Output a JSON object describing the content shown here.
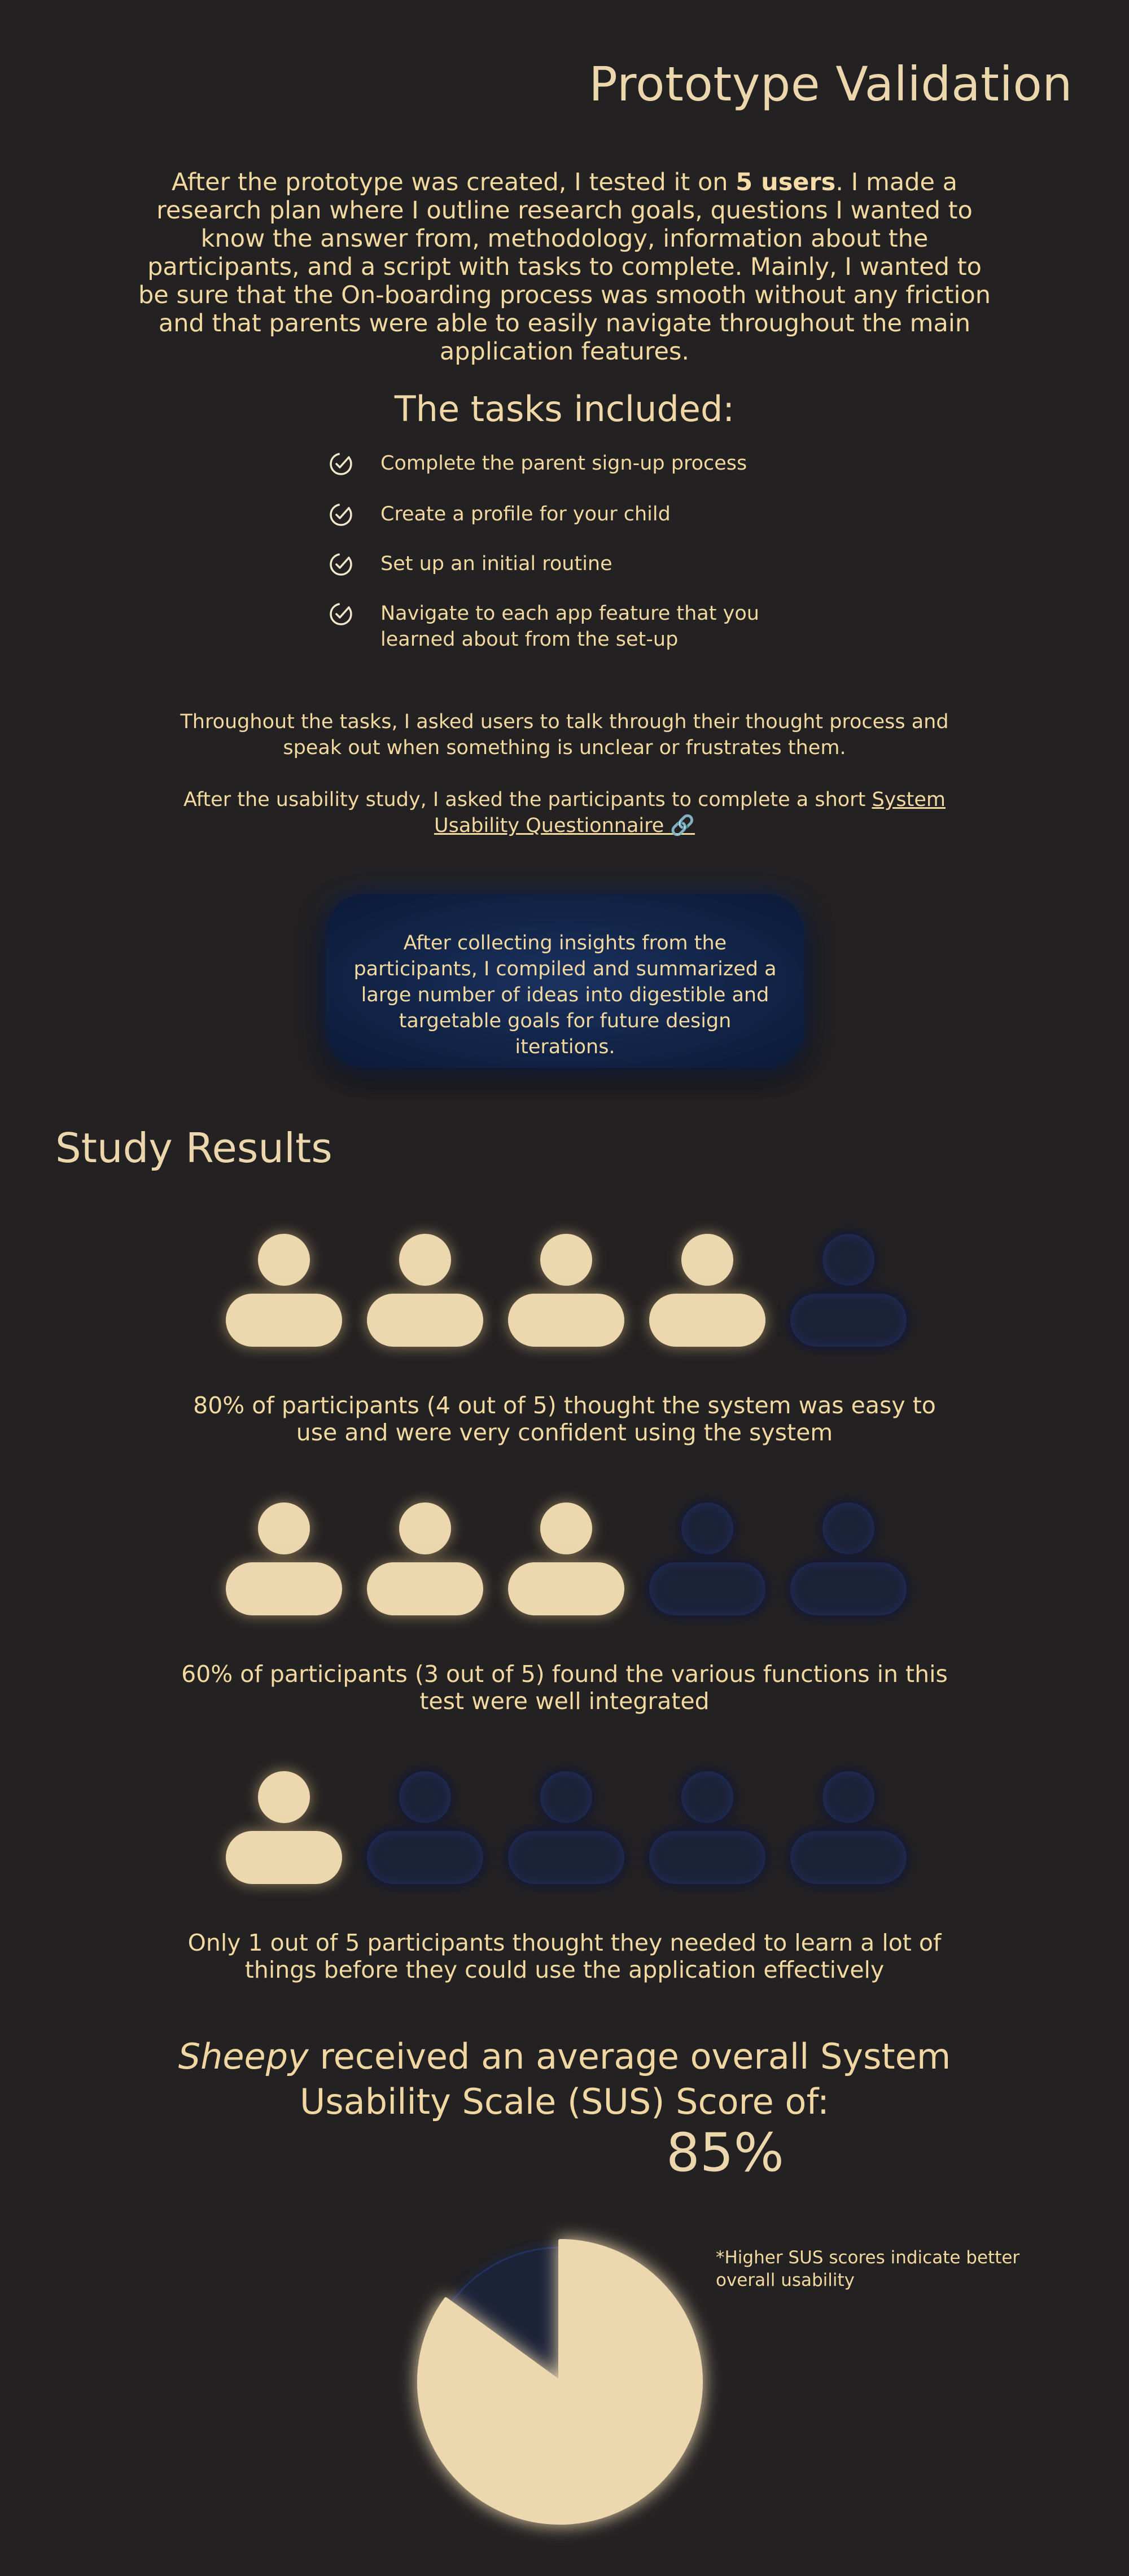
{
  "title": "Prototype Validation",
  "intro": {
    "before": "After the prototype was created, I tested it on ",
    "bold": "5 users",
    "after": ". I made a research plan where I outline research goals, questions I wanted to know the answer from, methodology, information about the participants, and a script with tasks to complete. Mainly, I wanted to be sure that the On-boarding process was smooth without any friction and that parents were able to easily navigate throughout the main application features."
  },
  "tasks_heading": "The tasks included:",
  "tasks": [
    "Complete the parent sign-up process",
    "Create a profile for your child",
    "Set up an initial routine",
    "Navigate to each app feature that you learned about from the set-up"
  ],
  "think_aloud": "Throughout the tasks, I asked users to talk through their thought process and speak out when something is unclear or frustrates them.",
  "after_study": {
    "text": "After the usability study, I asked the participants to complete a short ",
    "link": "System Usability Questionnaire 🔗"
  },
  "insight_card": "After collecting insights from the participants, I compiled and summarized a large number of ideas into digestible and targetable goals for future design iterations.",
  "study_title": "Study Results",
  "results": [
    {
      "filled": 4,
      "total": 5,
      "text": "80% of participants (4 out of 5) thought the system was easy to use and were very confident using the system"
    },
    {
      "filled": 3,
      "total": 5,
      "text": "60% of participants (3 out of 5) found the various functions in this test were well integrated"
    },
    {
      "filled": 1,
      "total": 5,
      "text": "Only 1 out of 5 participants thought they needed to learn a lot of things before they could use the application effectively"
    }
  ],
  "sus": {
    "product": "Sheepy",
    "heading": " received an average overall System Usability Scale (SUS) Score of:",
    "score_label": "85%",
    "score_value": 85,
    "note": "*Higher SUS scores indicate better overall usability"
  },
  "colors": {
    "background": "#232122",
    "accent": "#f2d9a0",
    "filled": "#ecd7ae",
    "empty": "#1c2238",
    "card": "#122447"
  }
}
